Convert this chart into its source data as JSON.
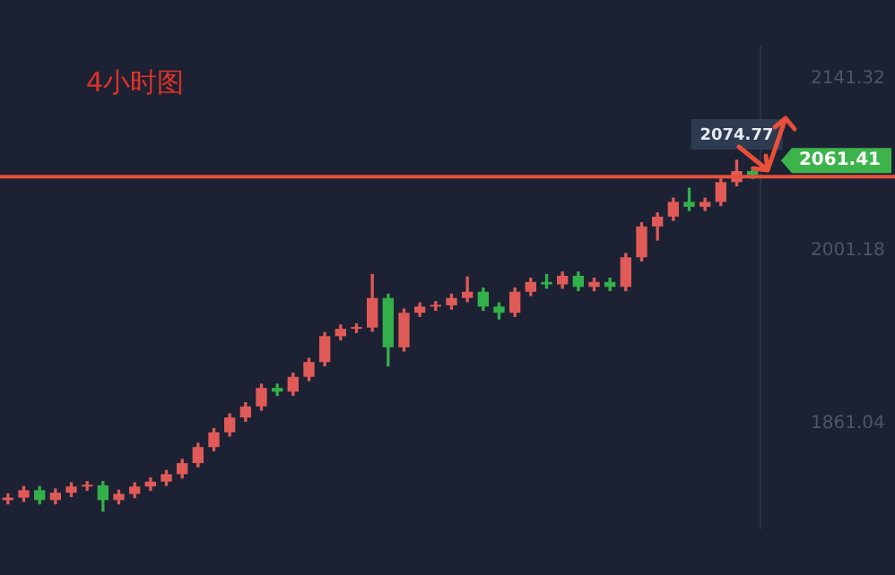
{
  "chart_data": {
    "type": "candlestick",
    "title": "4小时图",
    "categories": [
      null,
      null,
      null,
      null,
      null,
      null,
      null,
      null,
      null,
      null,
      null,
      null,
      null,
      null,
      null,
      null,
      null,
      null,
      null,
      null,
      null,
      null,
      null,
      null,
      null,
      null,
      null,
      null,
      null,
      null,
      null,
      null,
      null,
      null,
      null,
      null,
      null,
      null,
      null,
      null,
      null,
      null,
      null,
      null,
      null,
      null,
      null,
      null
    ],
    "ohlc": [
      [
        1799,
        1804,
        1796,
        1801
      ],
      [
        1801,
        1810,
        1798,
        1807
      ],
      [
        1807,
        1810,
        1796,
        1799
      ],
      [
        1799,
        1808,
        1796,
        1805
      ],
      [
        1805,
        1813,
        1802,
        1810
      ],
      [
        1810,
        1814,
        1807,
        1811
      ],
      [
        1811,
        1814,
        1790,
        1799
      ],
      [
        1799,
        1807,
        1796,
        1804
      ],
      [
        1804,
        1813,
        1801,
        1810
      ],
      [
        1810,
        1817,
        1807,
        1814
      ],
      [
        1814,
        1823,
        1811,
        1820
      ],
      [
        1820,
        1832,
        1817,
        1829
      ],
      [
        1829,
        1845,
        1826,
        1842
      ],
      [
        1842,
        1857,
        1839,
        1854
      ],
      [
        1854,
        1869,
        1851,
        1866
      ],
      [
        1866,
        1878,
        1863,
        1875
      ],
      [
        1875,
        1893,
        1872,
        1890
      ],
      [
        1890,
        1893,
        1884,
        1887
      ],
      [
        1887,
        1902,
        1884,
        1899
      ],
      [
        1899,
        1914,
        1896,
        1911
      ],
      [
        1911,
        1935,
        1908,
        1932
      ],
      [
        1932,
        1941,
        1929,
        1938
      ],
      [
        1938,
        1942,
        1935,
        1939
      ],
      [
        1939,
        1982,
        1936,
        1963
      ],
      [
        1963,
        1966,
        1908,
        1923
      ],
      [
        1923,
        1954,
        1920,
        1951
      ],
      [
        1951,
        1959,
        1948,
        1956
      ],
      [
        1956,
        1960,
        1953,
        1957
      ],
      [
        1957,
        1966,
        1954,
        1963
      ],
      [
        1963,
        1980,
        1960,
        1968
      ],
      [
        1968,
        1971,
        1953,
        1956
      ],
      [
        1956,
        1959,
        1946,
        1951
      ],
      [
        1951,
        1971,
        1948,
        1968
      ],
      [
        1968,
        1979,
        1965,
        1976
      ],
      [
        1976,
        1982,
        1971,
        1974
      ],
      [
        1974,
        1984,
        1971,
        1981
      ],
      [
        1981,
        1984,
        1969,
        1972
      ],
      [
        1972,
        1979,
        1969,
        1976
      ],
      [
        1976,
        1979,
        1969,
        1972
      ],
      [
        1972,
        1999,
        1969,
        1996
      ],
      [
        1996,
        2024,
        1993,
        2021
      ],
      [
        2021,
        2032,
        2010,
        2029
      ],
      [
        2029,
        2044,
        2026,
        2041
      ],
      [
        2041,
        2052,
        2034,
        2037
      ],
      [
        2037,
        2044,
        2034,
        2041
      ],
      [
        2041,
        2060,
        2038,
        2057
      ],
      [
        2057,
        2074.77,
        2054,
        2066
      ],
      [
        2066,
        2069,
        2060,
        2063
      ]
    ],
    "ylim": [
      1776,
      2167
    ],
    "yticks": [
      {
        "value": 2141.32,
        "label": "2141.32"
      },
      {
        "value": 2001.18,
        "label": "2001.18"
      },
      {
        "value": 1861.04,
        "label": "1861.04"
      }
    ],
    "tick_labels": "y",
    "ref_lines": [
      {
        "axis": "y",
        "value": 2061.41,
        "label": "2061.41",
        "color": "#e8503a"
      }
    ],
    "annotations": [
      {
        "text": "2074.77",
        "y": 2074.77
      }
    ],
    "grid": false,
    "legend": false
  }
}
